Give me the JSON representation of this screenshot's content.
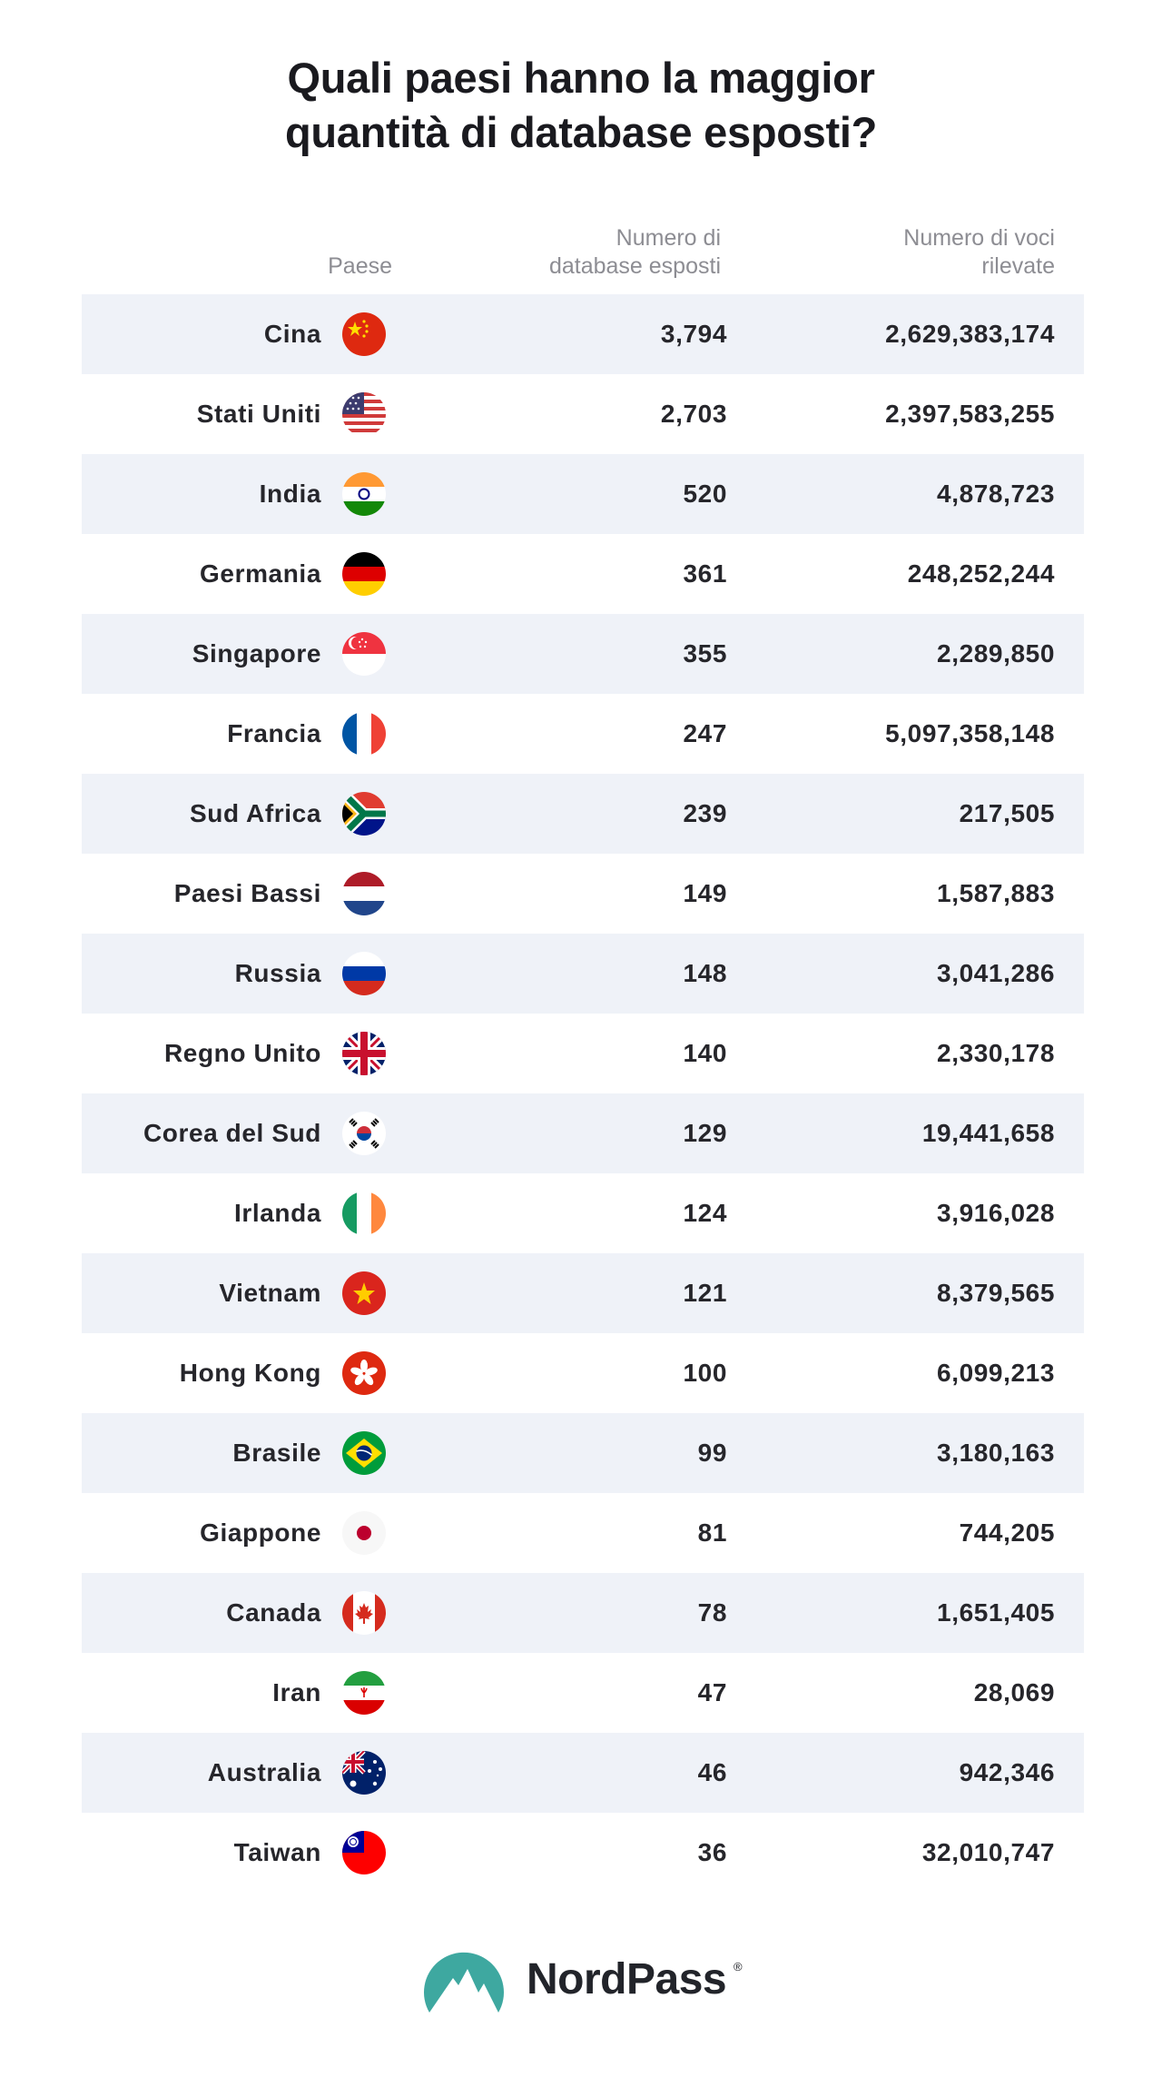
{
  "title": {
    "line1": "Quali paesi hanno la maggior",
    "line2": "quantità di database esposti?"
  },
  "header": {
    "country": "Paese",
    "db_line1": "Numero di",
    "db_line2": "database esposti",
    "rec_line1": "Numero di voci",
    "rec_line2": "rilevate"
  },
  "rows": [
    {
      "country": "Cina",
      "db": "3,794",
      "records": "2,629,383,174",
      "flag": "china-flag-icon"
    },
    {
      "country": "Stati Uniti",
      "db": "2,703",
      "records": "2,397,583,255",
      "flag": "usa-flag-icon"
    },
    {
      "country": "India",
      "db": "520",
      "records": "4,878,723",
      "flag": "india-flag-icon"
    },
    {
      "country": "Germania",
      "db": "361",
      "records": "248,252,244",
      "flag": "germany-flag-icon"
    },
    {
      "country": "Singapore",
      "db": "355",
      "records": "2,289,850",
      "flag": "singapore-flag-icon"
    },
    {
      "country": "Francia",
      "db": "247",
      "records": "5,097,358,148",
      "flag": "france-flag-icon"
    },
    {
      "country": "Sud Africa",
      "db": "239",
      "records": "217,505",
      "flag": "south-africa-flag-icon"
    },
    {
      "country": "Paesi Bassi",
      "db": "149",
      "records": "1,587,883",
      "flag": "netherlands-flag-icon"
    },
    {
      "country": "Russia",
      "db": "148",
      "records": "3,041,286",
      "flag": "russia-flag-icon"
    },
    {
      "country": "Regno Unito",
      "db": "140",
      "records": "2,330,178",
      "flag": "uk-flag-icon"
    },
    {
      "country": "Corea del Sud",
      "db": "129",
      "records": "19,441,658",
      "flag": "south-korea-flag-icon"
    },
    {
      "country": "Irlanda",
      "db": "124",
      "records": "3,916,028",
      "flag": "ireland-flag-icon"
    },
    {
      "country": "Vietnam",
      "db": "121",
      "records": "8,379,565",
      "flag": "vietnam-flag-icon"
    },
    {
      "country": "Hong Kong",
      "db": "100",
      "records": "6,099,213",
      "flag": "hong-kong-flag-icon"
    },
    {
      "country": "Brasile",
      "db": "99",
      "records": "3,180,163",
      "flag": "brazil-flag-icon"
    },
    {
      "country": "Giappone",
      "db": "81",
      "records": "744,205",
      "flag": "japan-flag-icon"
    },
    {
      "country": "Canada",
      "db": "78",
      "records": "1,651,405",
      "flag": "canada-flag-icon"
    },
    {
      "country": "Iran",
      "db": "47",
      "records": "28,069",
      "flag": "iran-flag-icon"
    },
    {
      "country": "Australia",
      "db": "46",
      "records": "942,346",
      "flag": "australia-flag-icon"
    },
    {
      "country": "Taiwan",
      "db": "36",
      "records": "32,010,747",
      "flag": "taiwan-flag-icon"
    }
  ],
  "logo": {
    "brand": "NordPass",
    "reg": "®",
    "icon": "nordpass-mountain-icon",
    "color": "#3ea8a0"
  },
  "colors": {
    "row_shade": "#eff2f8",
    "header_text": "#8d8d93",
    "body_text": "#26262b"
  }
}
